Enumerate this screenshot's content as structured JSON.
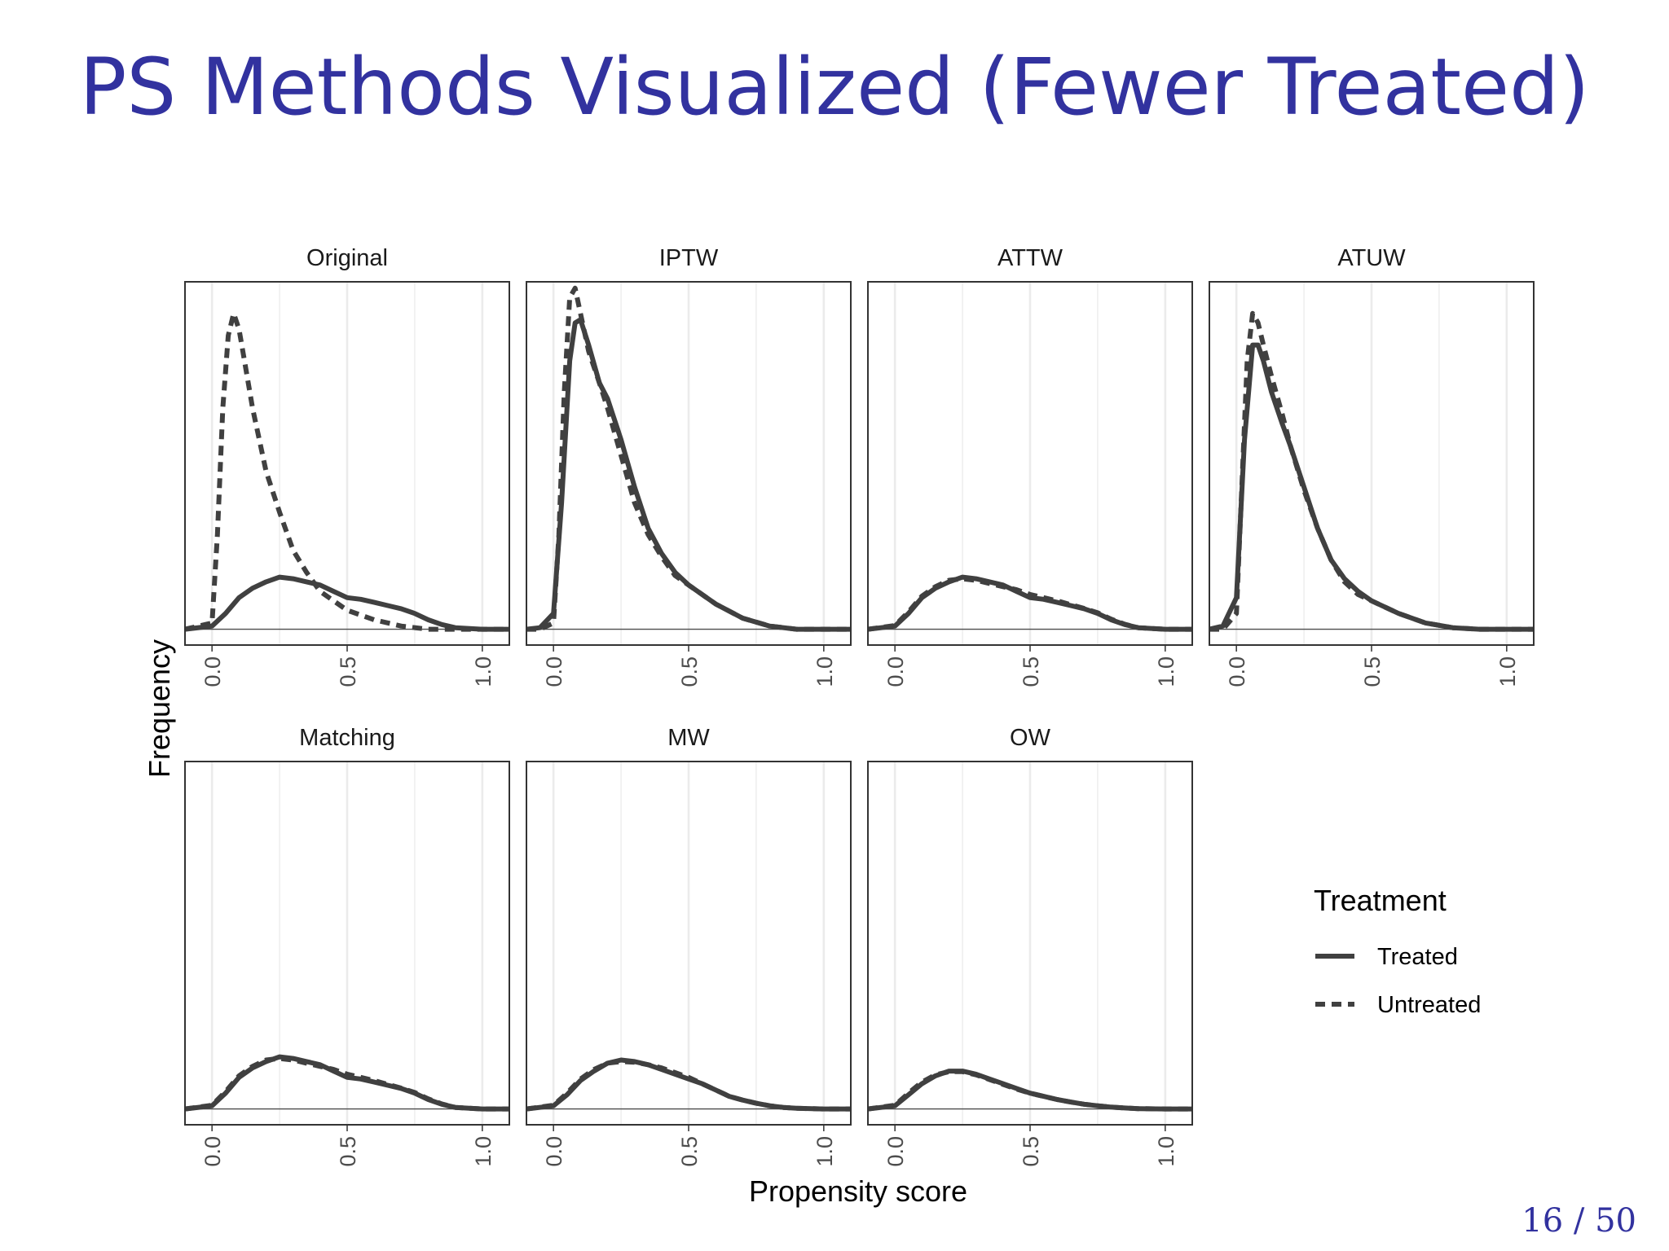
{
  "slide": {
    "title": "PS Methods Visualized (Fewer Treated)",
    "page_number": "16 / 50"
  },
  "chart_data": {
    "type": "line",
    "title": "",
    "xlabel": "Propensity score",
    "ylabel": "Frequency",
    "xlim": [
      -0.1,
      1.1
    ],
    "ylim": [
      -0.05,
      1.1
    ],
    "x_ticks": [
      "0.0",
      "0.5",
      "1.0"
    ],
    "x_tick_values": [
      0,
      0.5,
      1
    ],
    "grid": true,
    "legend": {
      "title": "Treatment",
      "placement": "right",
      "entries": [
        {
          "name": "Treated",
          "style": "solid"
        },
        {
          "name": "Untreated",
          "style": "dashed"
        }
      ]
    },
    "colors": {
      "line": "#404040",
      "grid": "#ebebeb",
      "panel_border": "#333333",
      "zero_line": "#4d4d4d"
    },
    "panels": [
      {
        "name": "Original",
        "series": [
          {
            "name": "Treated",
            "x": [
              -0.1,
              0,
              0.05,
              0.1,
              0.15,
              0.2,
              0.25,
              0.3,
              0.35,
              0.4,
              0.45,
              0.5,
              0.55,
              0.6,
              0.65,
              0.7,
              0.75,
              0.8,
              0.85,
              0.9,
              1.0,
              1.1
            ],
            "y": [
              0,
              0.01,
              0.05,
              0.1,
              0.13,
              0.15,
              0.165,
              0.16,
              0.15,
              0.14,
              0.12,
              0.1,
              0.095,
              0.085,
              0.075,
              0.065,
              0.05,
              0.03,
              0.015,
              0.005,
              0,
              0
            ]
          },
          {
            "name": "Untreated",
            "x": [
              -0.1,
              0,
              0.02,
              0.04,
              0.06,
              0.08,
              0.1,
              0.12,
              0.15,
              0.2,
              0.25,
              0.3,
              0.35,
              0.4,
              0.45,
              0.5,
              0.6,
              0.7,
              0.8,
              0.9,
              1.0,
              1.1
            ],
            "y": [
              0,
              0.02,
              0.3,
              0.7,
              0.93,
              1.0,
              0.95,
              0.85,
              0.7,
              0.5,
              0.37,
              0.25,
              0.18,
              0.12,
              0.09,
              0.06,
              0.03,
              0.01,
              0,
              0,
              0,
              0
            ]
          }
        ]
      },
      {
        "name": "IPTW",
        "series": [
          {
            "name": "Treated",
            "x": [
              -0.1,
              -0.05,
              0,
              0.03,
              0.06,
              0.08,
              0.1,
              0.13,
              0.17,
              0.2,
              0.25,
              0.3,
              0.35,
              0.4,
              0.45,
              0.5,
              0.6,
              0.7,
              0.8,
              0.9,
              1.0,
              1.1
            ],
            "y": [
              0,
              0.005,
              0.05,
              0.4,
              0.85,
              0.97,
              0.98,
              0.9,
              0.78,
              0.73,
              0.6,
              0.45,
              0.32,
              0.24,
              0.18,
              0.14,
              0.08,
              0.035,
              0.01,
              0,
              0,
              0
            ]
          },
          {
            "name": "Untreated",
            "x": [
              -0.1,
              -0.05,
              0,
              0.02,
              0.04,
              0.06,
              0.08,
              0.1,
              0.13,
              0.17,
              0.2,
              0.25,
              0.3,
              0.35,
              0.4,
              0.45,
              0.5,
              0.6,
              0.7,
              0.8,
              0.9,
              1.0,
              1.1
            ],
            "y": [
              0,
              0,
              0.02,
              0.3,
              0.75,
              1.05,
              1.08,
              1.0,
              0.88,
              0.78,
              0.7,
              0.55,
              0.4,
              0.3,
              0.23,
              0.17,
              0.14,
              0.08,
              0.035,
              0.01,
              0,
              0,
              0
            ]
          }
        ]
      },
      {
        "name": "ATTW",
        "series": [
          {
            "name": "Treated",
            "x": [
              -0.1,
              0,
              0.05,
              0.1,
              0.15,
              0.2,
              0.25,
              0.3,
              0.35,
              0.4,
              0.45,
              0.5,
              0.55,
              0.6,
              0.65,
              0.7,
              0.75,
              0.8,
              0.85,
              0.9,
              1.0,
              1.1
            ],
            "y": [
              0,
              0.01,
              0.05,
              0.1,
              0.13,
              0.15,
              0.165,
              0.16,
              0.15,
              0.14,
              0.12,
              0.1,
              0.095,
              0.085,
              0.075,
              0.065,
              0.05,
              0.03,
              0.015,
              0.005,
              0,
              0
            ]
          },
          {
            "name": "Untreated",
            "x": [
              -0.1,
              0,
              0.05,
              0.1,
              0.15,
              0.2,
              0.25,
              0.3,
              0.35,
              0.4,
              0.45,
              0.5,
              0.55,
              0.6,
              0.65,
              0.7,
              0.75,
              0.8,
              0.85,
              0.9,
              1.0,
              1.1
            ],
            "y": [
              0,
              0.012,
              0.055,
              0.105,
              0.135,
              0.155,
              0.16,
              0.155,
              0.145,
              0.135,
              0.125,
              0.11,
              0.1,
              0.09,
              0.078,
              0.066,
              0.052,
              0.032,
              0.016,
              0.005,
              0,
              0
            ]
          }
        ]
      },
      {
        "name": "ATUW",
        "series": [
          {
            "name": "Treated",
            "x": [
              -0.1,
              -0.05,
              0,
              0.03,
              0.06,
              0.08,
              0.1,
              0.13,
              0.17,
              0.2,
              0.25,
              0.3,
              0.35,
              0.4,
              0.45,
              0.5,
              0.6,
              0.7,
              0.8,
              0.9,
              1.0,
              1.1
            ],
            "y": [
              0,
              0.01,
              0.1,
              0.6,
              0.9,
              0.9,
              0.85,
              0.75,
              0.65,
              0.58,
              0.45,
              0.32,
              0.22,
              0.16,
              0.12,
              0.09,
              0.05,
              0.02,
              0.005,
              0,
              0,
              0
            ]
          },
          {
            "name": "Untreated",
            "x": [
              -0.1,
              -0.05,
              0,
              0.02,
              0.04,
              0.06,
              0.08,
              0.1,
              0.13,
              0.17,
              0.2,
              0.25,
              0.3,
              0.35,
              0.4,
              0.45,
              0.5,
              0.6,
              0.7,
              0.8,
              0.9,
              1.0,
              1.1
            ],
            "y": [
              0,
              0,
              0.05,
              0.45,
              0.85,
              1.0,
              0.97,
              0.9,
              0.8,
              0.68,
              0.58,
              0.44,
              0.32,
              0.22,
              0.15,
              0.11,
              0.09,
              0.05,
              0.02,
              0.005,
              0,
              0,
              0
            ]
          }
        ]
      },
      {
        "name": "Matching",
        "series": [
          {
            "name": "Treated",
            "x": [
              -0.1,
              0,
              0.05,
              0.1,
              0.15,
              0.2,
              0.25,
              0.3,
              0.35,
              0.4,
              0.45,
              0.5,
              0.55,
              0.6,
              0.65,
              0.7,
              0.75,
              0.8,
              0.85,
              0.9,
              1.0,
              1.1
            ],
            "y": [
              0,
              0.01,
              0.05,
              0.1,
              0.13,
              0.15,
              0.165,
              0.16,
              0.15,
              0.14,
              0.12,
              0.1,
              0.095,
              0.085,
              0.075,
              0.065,
              0.05,
              0.03,
              0.015,
              0.005,
              0,
              0
            ]
          },
          {
            "name": "Untreated",
            "x": [
              -0.1,
              0,
              0.05,
              0.1,
              0.15,
              0.2,
              0.25,
              0.3,
              0.35,
              0.4,
              0.45,
              0.5,
              0.55,
              0.6,
              0.65,
              0.7,
              0.75,
              0.8,
              0.85,
              0.9,
              1.0,
              1.1
            ],
            "y": [
              0,
              0.012,
              0.055,
              0.105,
              0.135,
              0.155,
              0.16,
              0.155,
              0.145,
              0.135,
              0.125,
              0.11,
              0.1,
              0.09,
              0.078,
              0.066,
              0.052,
              0.032,
              0.016,
              0.005,
              0,
              0
            ]
          }
        ]
      },
      {
        "name": "MW",
        "series": [
          {
            "name": "Treated",
            "x": [
              -0.1,
              0,
              0.05,
              0.1,
              0.15,
              0.2,
              0.25,
              0.3,
              0.35,
              0.4,
              0.45,
              0.5,
              0.55,
              0.6,
              0.65,
              0.7,
              0.75,
              0.8,
              0.85,
              0.9,
              1.0,
              1.1
            ],
            "y": [
              0,
              0.01,
              0.045,
              0.09,
              0.12,
              0.145,
              0.155,
              0.15,
              0.14,
              0.125,
              0.11,
              0.095,
              0.08,
              0.06,
              0.04,
              0.028,
              0.018,
              0.01,
              0.005,
              0.002,
              0,
              0
            ]
          },
          {
            "name": "Untreated",
            "x": [
              -0.1,
              0,
              0.05,
              0.1,
              0.15,
              0.2,
              0.25,
              0.3,
              0.35,
              0.4,
              0.45,
              0.5,
              0.55,
              0.6,
              0.65,
              0.7,
              0.75,
              0.8,
              0.85,
              0.9,
              1.0,
              1.1
            ],
            "y": [
              0,
              0.012,
              0.05,
              0.095,
              0.125,
              0.145,
              0.15,
              0.148,
              0.14,
              0.13,
              0.115,
              0.1,
              0.08,
              0.06,
              0.04,
              0.028,
              0.018,
              0.01,
              0.005,
              0.002,
              0,
              0
            ]
          }
        ]
      },
      {
        "name": "OW",
        "series": [
          {
            "name": "Treated",
            "x": [
              -0.1,
              0,
              0.05,
              0.1,
              0.15,
              0.2,
              0.25,
              0.3,
              0.35,
              0.4,
              0.45,
              0.5,
              0.55,
              0.6,
              0.65,
              0.7,
              0.75,
              0.8,
              0.85,
              0.9,
              1.0,
              1.1
            ],
            "y": [
              0,
              0.01,
              0.045,
              0.08,
              0.105,
              0.12,
              0.12,
              0.11,
              0.095,
              0.08,
              0.065,
              0.05,
              0.04,
              0.03,
              0.022,
              0.015,
              0.01,
              0.006,
              0.003,
              0.001,
              0,
              0
            ]
          },
          {
            "name": "Untreated",
            "x": [
              -0.1,
              0,
              0.05,
              0.1,
              0.15,
              0.2,
              0.25,
              0.3,
              0.35,
              0.4,
              0.45,
              0.5,
              0.55,
              0.6,
              0.65,
              0.7,
              0.75,
              0.8,
              0.85,
              0.9,
              1.0,
              1.1
            ],
            "y": [
              0,
              0.012,
              0.05,
              0.085,
              0.108,
              0.118,
              0.118,
              0.108,
              0.093,
              0.078,
              0.063,
              0.05,
              0.04,
              0.03,
              0.022,
              0.015,
              0.01,
              0.006,
              0.003,
              0.001,
              0,
              0
            ]
          }
        ]
      }
    ]
  }
}
